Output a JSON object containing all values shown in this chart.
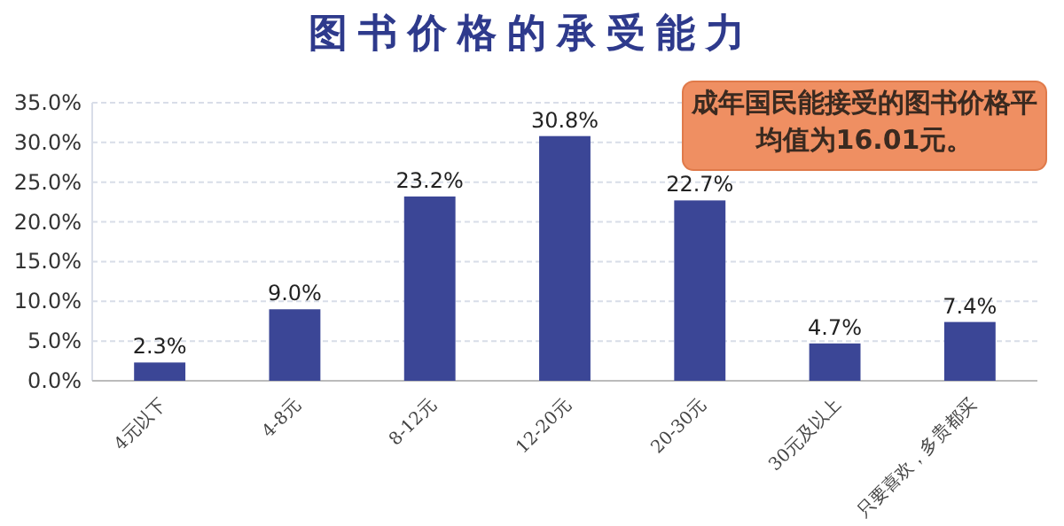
{
  "chart_data": {
    "type": "bar",
    "title": "图书价格的承受能力",
    "categories": [
      "4元以下",
      "4-8元",
      "8-12元",
      "12-20元",
      "20-30元",
      "30元及以上",
      "只要喜欢，多贵都买"
    ],
    "values": [
      2.3,
      9.0,
      23.2,
      30.8,
      22.7,
      4.7,
      7.4
    ],
    "value_labels": [
      "2.3%",
      "9.0%",
      "23.2%",
      "30.8%",
      "22.7%",
      "4.7%",
      "7.4%"
    ],
    "color": "#3b4696",
    "ylim": [
      0,
      35
    ],
    "yticks": [
      {
        "value": 0,
        "label": "0.0%"
      },
      {
        "value": 5,
        "label": "5.0%"
      },
      {
        "value": 10,
        "label": "10.0%"
      },
      {
        "value": 15,
        "label": "15.0%"
      },
      {
        "value": 20,
        "label": "20.0%"
      },
      {
        "value": 25,
        "label": "25.0%"
      },
      {
        "value": 30,
        "label": "30.0%"
      },
      {
        "value": 35,
        "label": "35.0%"
      }
    ],
    "grid": "y",
    "annotations": [
      "成年国民能接受的图书价格平均值为16.01元。"
    ]
  }
}
